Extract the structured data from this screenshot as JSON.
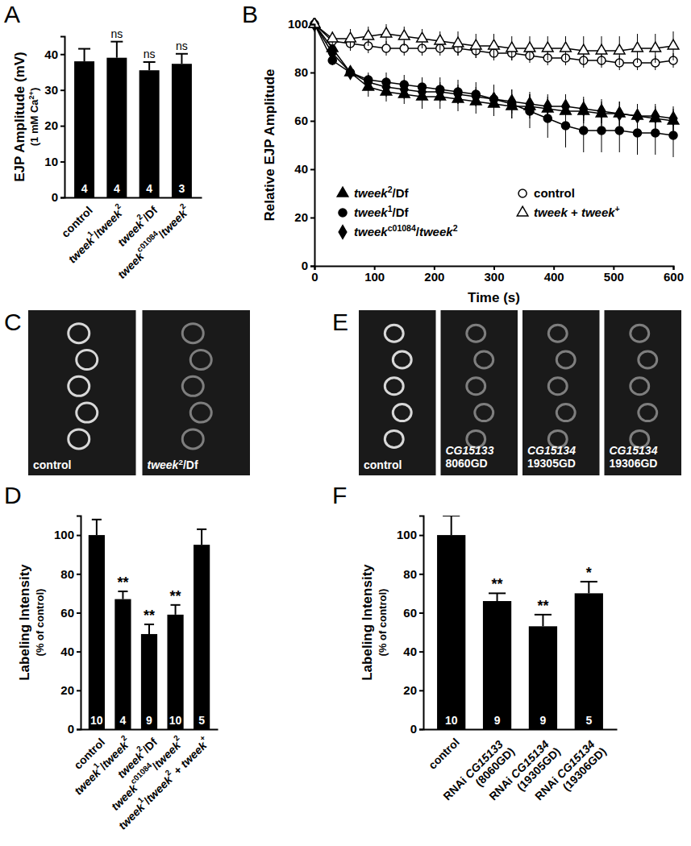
{
  "chart_data": [
    {
      "panel": "A",
      "type": "bar",
      "y_label": "EJP Amplitude (mV)",
      "y_sublabel": "(1 mM Ca2+)",
      "categories": [
        "control",
        "tweek1/tweek2",
        "tweek2/Df",
        "tweekc01084/tweek2"
      ],
      "values": [
        38,
        39,
        35.5,
        37.3
      ],
      "errors": [
        3.5,
        4.5,
        2.3,
        2.8
      ],
      "n": [
        4,
        4,
        4,
        3
      ],
      "annotations": [
        null,
        "ns",
        "ns",
        "ns"
      ],
      "color": "#000000",
      "ylim": [
        0,
        45
      ],
      "yticks": [
        0,
        10,
        20,
        30,
        40
      ]
    },
    {
      "panel": "B",
      "type": "line",
      "x_label": "Time (s)",
      "y_label": "Relative EJP Amplitude",
      "x": [
        0,
        30,
        60,
        90,
        120,
        150,
        180,
        210,
        240,
        270,
        300,
        330,
        360,
        390,
        420,
        450,
        480,
        510,
        540,
        570,
        600
      ],
      "series": [
        {
          "name": "tweek2/Df",
          "color": "#000000",
          "marker": "triangle",
          "values": [
            100,
            90,
            80,
            74,
            72,
            71,
            70,
            70,
            69,
            68,
            67,
            66,
            66,
            65,
            64,
            64,
            63,
            63,
            62,
            61,
            60
          ],
          "errors": [
            0,
            2,
            3,
            4,
            4,
            4,
            5,
            5,
            5,
            5,
            5,
            5,
            5,
            5,
            5,
            5,
            5,
            5,
            5,
            5,
            5
          ]
        },
        {
          "name": "tweek1/Df",
          "color": "#000000",
          "marker": "circle",
          "values": [
            100,
            85,
            80,
            77,
            76,
            75,
            74,
            73,
            72,
            71,
            69,
            67,
            64,
            61,
            58,
            56,
            56,
            56,
            55,
            55,
            54
          ],
          "errors": [
            0,
            2,
            3,
            3,
            4,
            4,
            4,
            5,
            5,
            5,
            6,
            6,
            7,
            8,
            9,
            9,
            9,
            9,
            9,
            9,
            9
          ]
        },
        {
          "name": "tweekc01084/tweek2",
          "color": "#000000",
          "marker": "diamond",
          "values": [
            100,
            88,
            80,
            76,
            74,
            73,
            72,
            72,
            71,
            70,
            69,
            68,
            67,
            66,
            66,
            65,
            64,
            63,
            62,
            62,
            61
          ],
          "errors": [
            0,
            2,
            3,
            3,
            4,
            4,
            4,
            4,
            4,
            4,
            5,
            5,
            5,
            5,
            5,
            5,
            5,
            5,
            5,
            5,
            5
          ]
        },
        {
          "name": "control",
          "color": "#000000",
          "marker": "open-circle",
          "values": [
            100,
            93,
            92,
            91,
            90,
            90,
            90,
            90,
            90,
            89,
            88,
            88,
            87,
            86,
            86,
            85,
            85,
            84,
            84,
            84,
            85
          ],
          "errors": [
            0,
            2,
            3,
            3,
            3,
            3,
            3,
            3,
            3,
            3,
            3,
            3,
            3,
            3,
            3,
            3,
            3,
            3,
            3,
            3,
            3
          ]
        },
        {
          "name": "tweek + tweek+",
          "color": "#000000",
          "marker": "open-triangle",
          "values": [
            100,
            94,
            94,
            95,
            96,
            95,
            94,
            93,
            92,
            91,
            91,
            90,
            90,
            90,
            90,
            89,
            89,
            89,
            90,
            90,
            91
          ],
          "errors": [
            0,
            3,
            4,
            4,
            4,
            4,
            4,
            4,
            5,
            5,
            5,
            5,
            5,
            5,
            5,
            6,
            6,
            6,
            6,
            6,
            6
          ]
        }
      ],
      "xlim": [
        0,
        600
      ],
      "xticks": [
        0,
        100,
        200,
        300,
        400,
        500,
        600
      ],
      "ylim": [
        0,
        100
      ],
      "yticks": [
        0,
        20,
        40,
        60,
        80,
        100
      ],
      "legend": "lower left"
    },
    {
      "panel": "C",
      "type": "image",
      "labels": [
        "control",
        "tweek2/Df"
      ]
    },
    {
      "panel": "D",
      "type": "bar",
      "y_label": "Labeling Intensity",
      "y_sublabel": "(% of control)",
      "categories": [
        "control",
        "tweek1/tweek2",
        "tweek2/Df",
        "tweekc01084/tweek2",
        "tweek1/tweek2 + tweek+"
      ],
      "values": [
        100,
        67,
        49,
        59,
        95
      ],
      "errors": [
        8,
        4,
        5,
        5,
        8
      ],
      "n": [
        10,
        4,
        9,
        10,
        5
      ],
      "annotations": [
        null,
        "**",
        "**",
        "**",
        null
      ],
      "color": "#000000",
      "ylim": [
        0,
        110
      ],
      "yticks": [
        0,
        20,
        40,
        60,
        80,
        100
      ]
    },
    {
      "panel": "E",
      "type": "image",
      "labels": [
        "control",
        "CG15133 8060GD",
        "CG15134 19305GD",
        "CG15134 19306GD"
      ]
    },
    {
      "panel": "F",
      "type": "bar",
      "y_label": "Labeling Intensity",
      "y_sublabel": "(% of control)",
      "categories": [
        "control",
        "RNAi CG15133 (8060GD)",
        "RNAi CG15134 (19305GD)",
        "RNAi CG15134 (19306GD)"
      ],
      "values": [
        100,
        66,
        53,
        70
      ],
      "errors": [
        10,
        4,
        6,
        6
      ],
      "n": [
        10,
        9,
        9,
        5
      ],
      "annotations": [
        null,
        "**",
        "**",
        "*"
      ],
      "color": "#000000",
      "ylim": [
        0,
        110
      ],
      "yticks": [
        0,
        20,
        40,
        60,
        80,
        100
      ]
    }
  ]
}
